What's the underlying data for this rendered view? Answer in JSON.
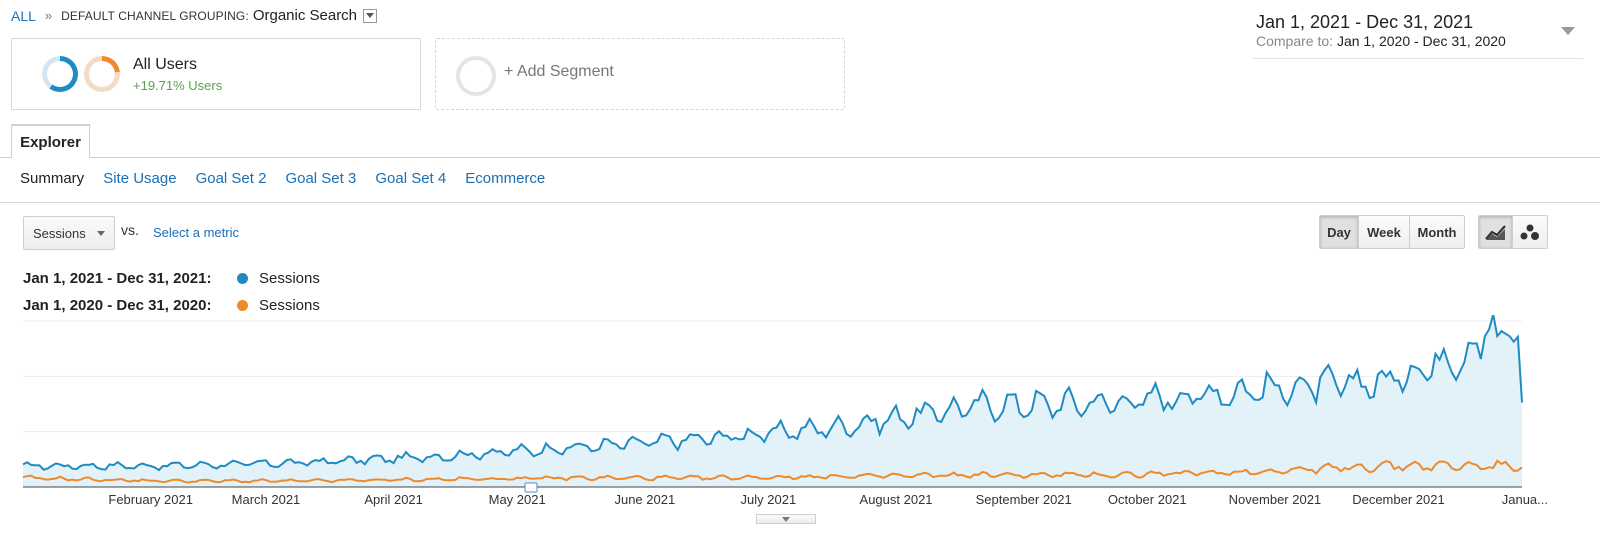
{
  "breadcrumb": {
    "all": "ALL",
    "separator": "»",
    "dimension": "DEFAULT CHANNEL GROUPING:",
    "value": "Organic Search"
  },
  "date_range": {
    "main": "Jan 1, 2021 - Dec 31, 2021",
    "compare_label": "Compare to:",
    "compare_value": "Jan 1, 2020 - Dec 31, 2020"
  },
  "segments": {
    "segment1": {
      "name": "All Users",
      "delta": "+19.71% Users"
    },
    "add_label": "+ Add Segment"
  },
  "tabs": {
    "explorer": "Explorer",
    "subtabs": [
      "Summary",
      "Site Usage",
      "Goal Set 2",
      "Goal Set 3",
      "Goal Set 4",
      "Ecommerce"
    ]
  },
  "metric": {
    "selected": "Sessions",
    "vs": "vs.",
    "select_metric": "Select a metric"
  },
  "granularity": {
    "day": "Day",
    "week": "Week",
    "month": "Month",
    "active": "Day"
  },
  "view_icons": [
    "line-chart-icon",
    "motion-chart-icon"
  ],
  "legend": [
    {
      "label": "Jan 1, 2021 - Dec 31, 2021:",
      "series": "Sessions",
      "color": "#1e8bc3"
    },
    {
      "label": "Jan 1, 2020 - Dec 31, 2020:",
      "series": "Sessions",
      "color": "#ee8a2b"
    }
  ],
  "colors": {
    "primary": "#1e8bc3",
    "compare": "#ee8a2b",
    "link": "#1a6fb5",
    "positive": "#59a14f"
  },
  "chart_data": {
    "type": "area",
    "x_tick_labels": [
      "February 2021",
      "March 2021",
      "April 2021",
      "May 2021",
      "June 2021",
      "July 2021",
      "August 2021",
      "September 2021",
      "October 2021",
      "November 2021",
      "December 2021",
      "Janua..."
    ],
    "series": [
      {
        "name": "Sessions",
        "period": "Jan 1, 2021 - Dec 31, 2021",
        "monthly_anchor_values": [
          7,
          7,
          8,
          10,
          13,
          16,
          20,
          27,
          28,
          32,
          35,
          52
        ],
        "final_value": 28
      },
      {
        "name": "Sessions",
        "period": "Jan 1, 2020 - Dec 31, 2020",
        "monthly_anchor_values": [
          3,
          2,
          2,
          2.5,
          3,
          3,
          3.5,
          4,
          4,
          5,
          7,
          7
        ]
      }
    ],
    "ylim": [
      0,
      55
    ],
    "grid": true
  }
}
